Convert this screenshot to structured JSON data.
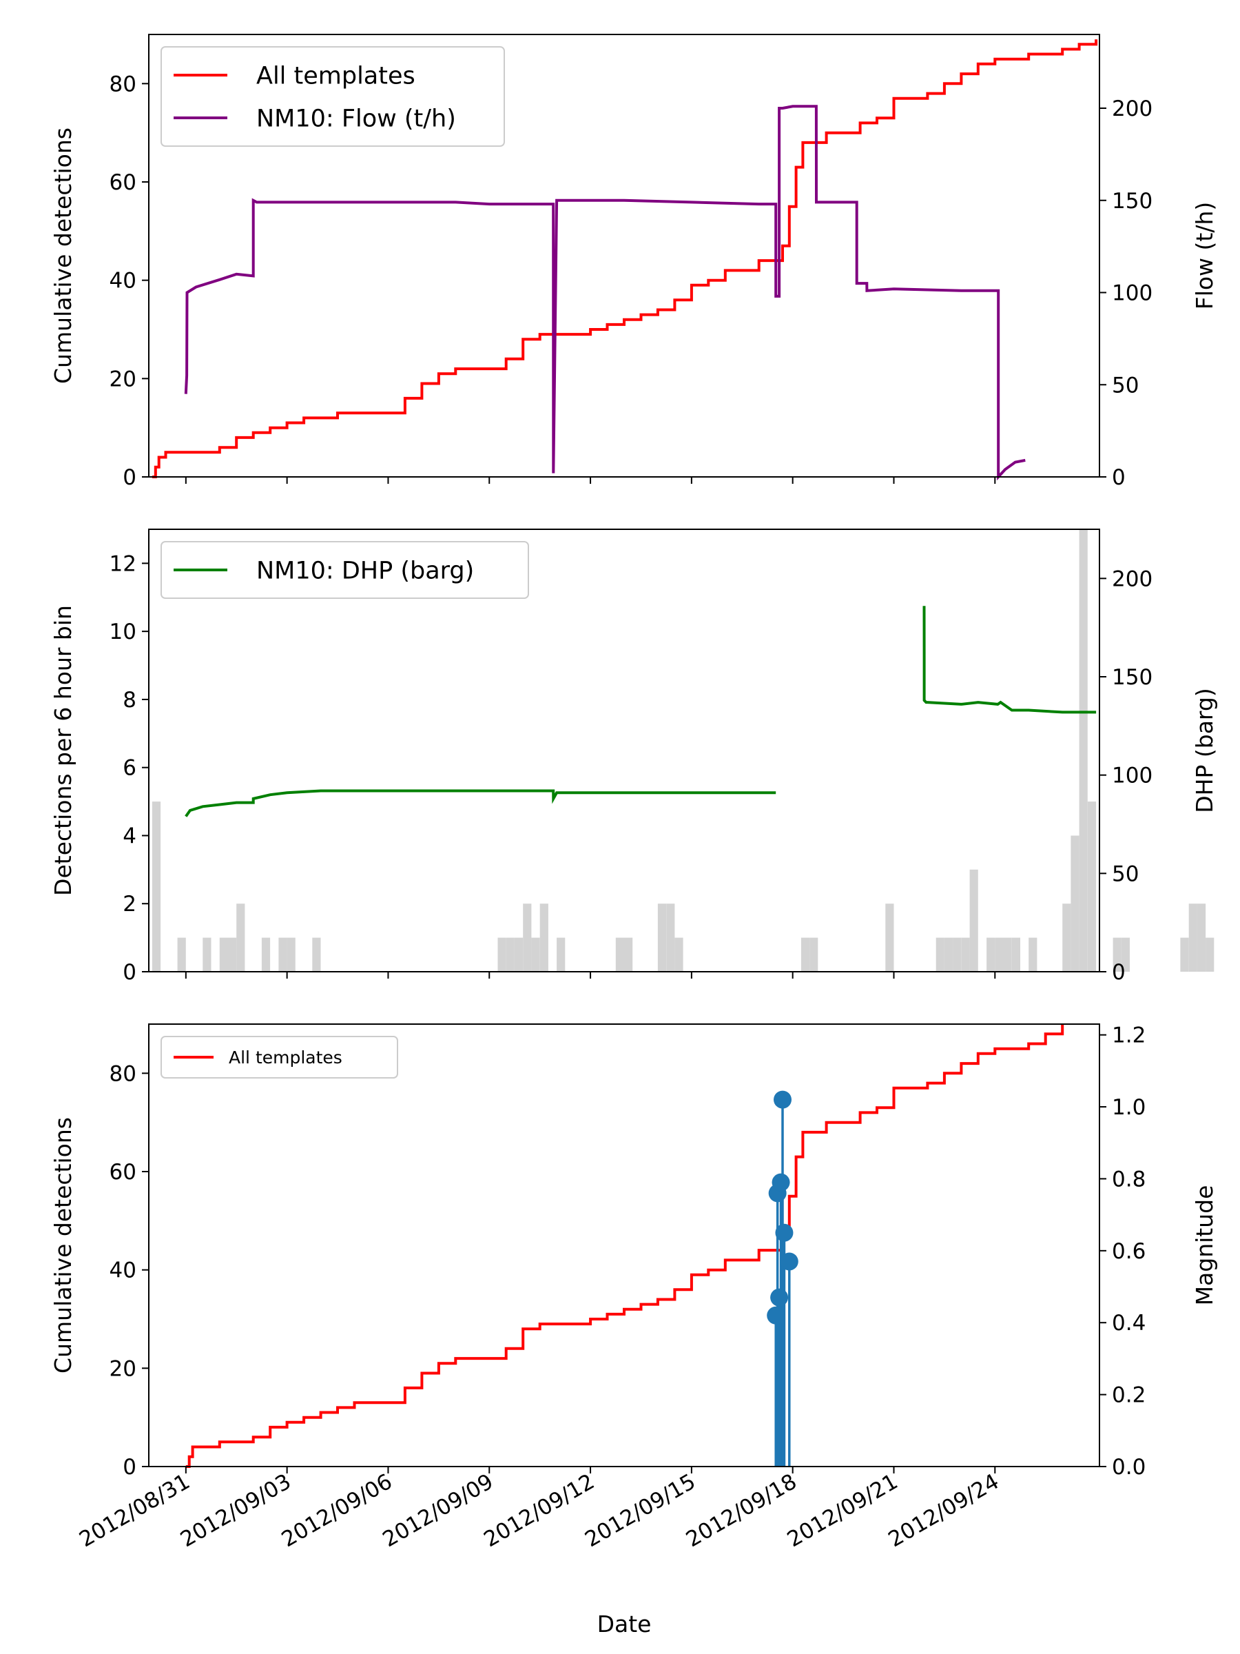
{
  "colors": {
    "cumulative": "#ff0000",
    "flow": "#800080",
    "dhp": "#008000",
    "histogram": "#d3d3d3",
    "magnitude": "#1f77b4"
  },
  "xaxis": {
    "label": "Date",
    "tick_labels": [
      "2012/08/31",
      "2012/09/03",
      "2012/09/06",
      "2012/09/09",
      "2012/09/12",
      "2012/09/15",
      "2012/09/18",
      "2012/09/21",
      "2012/09/24"
    ],
    "range_days": [
      -1.1,
      27.1
    ]
  },
  "chart_data": [
    {
      "type": "line",
      "panel": "top",
      "ylabel": "Cumulative detections",
      "ylim": [
        0,
        90
      ],
      "yticks": [
        0,
        20,
        40,
        60,
        80
      ],
      "ylabel_right": "Flow (t/h)",
      "ylim_right": [
        0,
        240
      ],
      "yticks_right": [
        0,
        50,
        100,
        150,
        200
      ],
      "legend": {
        "placement": "upper-left",
        "entries": [
          "All templates",
          "NM10: Flow (t/h)"
        ]
      },
      "series": [
        {
          "name": "All templates",
          "axis": "left",
          "step": true,
          "x": [
            "2012-08-30 00:00",
            "2012-08-30 02:24",
            "2012-08-30 04:48",
            "2012-08-30 09:36",
            "2012-08-31 00:00",
            "2012-09-01 00:00",
            "2012-09-01 12:00",
            "2012-09-02 00:00",
            "2012-09-02 12:00",
            "2012-09-03 00:00",
            "2012-09-03 12:00",
            "2012-09-04 00:00",
            "2012-09-04 12:00",
            "2012-09-05 00:00",
            "2012-09-06 00:00",
            "2012-09-06 12:00",
            "2012-09-07 00:00",
            "2012-09-07 12:00",
            "2012-09-08 00:00",
            "2012-09-09 00:00",
            "2012-09-09 12:00",
            "2012-09-10 00:00",
            "2012-09-10 12:00",
            "2012-09-11 00:00",
            "2012-09-12 00:00",
            "2012-09-12 12:00",
            "2012-09-13 00:00",
            "2012-09-13 12:00",
            "2012-09-14 00:00",
            "2012-09-14 12:00",
            "2012-09-15 00:00",
            "2012-09-15 12:00",
            "2012-09-16 00:00",
            "2012-09-16 12:00",
            "2012-09-17 00:00",
            "2012-09-17 12:00",
            "2012-09-17 16:48",
            "2012-09-17 21:36",
            "2012-09-18 02:24",
            "2012-09-18 07:12",
            "2012-09-18 12:00",
            "2012-09-19 00:00",
            "2012-09-19 12:00",
            "2012-09-20 00:00",
            "2012-09-20 12:00",
            "2012-09-21 00:00",
            "2012-09-21 12:00",
            "2012-09-22 00:00",
            "2012-09-22 12:00",
            "2012-09-23 00:00",
            "2012-09-23 12:00",
            "2012-09-24 00:00",
            "2012-09-24 12:00",
            "2012-09-25 00:00",
            "2012-09-25 12:00",
            "2012-09-26 00:00",
            "2012-09-26 12:00",
            "2012-09-27 00:00"
          ],
          "y": [
            0,
            2,
            4,
            5,
            5,
            6,
            8,
            9,
            10,
            11,
            12,
            12,
            13,
            13,
            13,
            16,
            19,
            21,
            22,
            22,
            24,
            28,
            29,
            29,
            30,
            31,
            32,
            33,
            34,
            36,
            39,
            40,
            42,
            42,
            44,
            44,
            47,
            55,
            63,
            68,
            68,
            70,
            70,
            72,
            73,
            77,
            77,
            78,
            80,
            82,
            84,
            85,
            85,
            86,
            86,
            87,
            88,
            89
          ]
        },
        {
          "name": "NM10: Flow (t/h)",
          "axis": "right",
          "x": [
            "2012-08-31 00:00",
            "2012-08-31 00:36",
            "2012-08-31 00:48",
            "2012-08-31 07:12",
            "2012-09-01 00:00",
            "2012-09-01 12:00",
            "2012-09-02 00:00",
            "2012-09-02 00:01",
            "2012-09-02 02:24",
            "2012-09-04 00:00",
            "2012-09-06 00:00",
            "2012-09-08 00:00",
            "2012-09-09 00:00",
            "2012-09-10 00:00",
            "2012-09-10 21:36",
            "2012-09-10 21:37",
            "2012-09-11 00:00",
            "2012-09-11 00:01",
            "2012-09-11 02:24",
            "2012-09-13 00:00",
            "2012-09-15 00:00",
            "2012-09-17 00:00",
            "2012-09-17 12:00",
            "2012-09-17 12:01",
            "2012-09-17 14:24",
            "2012-09-17 14:25",
            "2012-09-17 16:48",
            "2012-09-18 00:00",
            "2012-09-18 16:48",
            "2012-09-18 16:49",
            "2012-09-19 00:00",
            "2012-09-19 21:36",
            "2012-09-19 21:37",
            "2012-09-20 04:48",
            "2012-09-20 04:49",
            "2012-09-21 00:00",
            "2012-09-23 00:00",
            "2012-09-24 02:24",
            "2012-09-24 02:25",
            "2012-09-24 07:12",
            "2012-09-24 14:24",
            "2012-09-24 21:36"
          ],
          "y": [
            45,
            55,
            100,
            103,
            107,
            110,
            109,
            150,
            149,
            149,
            149,
            149,
            148,
            148,
            148,
            2,
            150,
            150,
            150,
            150,
            149,
            148,
            148,
            98,
            98,
            200,
            200,
            201,
            201,
            149,
            149,
            149,
            105,
            105,
            101,
            102,
            101,
            101,
            0,
            4,
            8,
            9
          ]
        }
      ]
    },
    {
      "type": "bar",
      "panel": "middle",
      "ylabel": "Detections per 6 hour bin",
      "ylim": [
        0,
        13
      ],
      "yticks": [
        0,
        2,
        4,
        6,
        8,
        10,
        12
      ],
      "ylabel_right": "DHP (barg)",
      "ylim_right": [
        0,
        225
      ],
      "yticks_right": [
        0,
        50,
        100,
        150,
        200
      ],
      "legend": {
        "placement": "upper-left",
        "entries": [
          "NM10: DHP (barg)"
        ]
      },
      "bin_hours": 6,
      "bins_start": "2012-08-30 00:00",
      "values": [
        5,
        0,
        0,
        1,
        0,
        0,
        1,
        0,
        1,
        1,
        2,
        0,
        0,
        1,
        0,
        1,
        1,
        0,
        0,
        1,
        0,
        0,
        0,
        0,
        0,
        0,
        0,
        0,
        0,
        0,
        0,
        0,
        0,
        0,
        0,
        0,
        0,
        0,
        0,
        0,
        0,
        1,
        1,
        1,
        2,
        1,
        2,
        0,
        1,
        0,
        0,
        0,
        0,
        0,
        0,
        1,
        1,
        0,
        0,
        0,
        2,
        2,
        1,
        0,
        0,
        0,
        0,
        0,
        0,
        0,
        0,
        0,
        0,
        0,
        0,
        0,
        0,
        1,
        1,
        0,
        0,
        0,
        0,
        0,
        0,
        0,
        0,
        2,
        0,
        0,
        0,
        0,
        0,
        1,
        1,
        1,
        1,
        3,
        0,
        1,
        1,
        1,
        1,
        0,
        1,
        0,
        0,
        0,
        2,
        4,
        13,
        5,
        0,
        0,
        1,
        1,
        0,
        0,
        0,
        0,
        0,
        0,
        1,
        2,
        2,
        1,
        0,
        0,
        0,
        0,
        0,
        0,
        1,
        1,
        1,
        2,
        1,
        0,
        1,
        0,
        0,
        0,
        0,
        0,
        1,
        1,
        1,
        2
      ],
      "series": [
        {
          "name": "NM10: DHP (barg)",
          "axis": "right",
          "x": [
            "2012-08-31 00:00",
            "2012-08-31 03:00",
            "2012-08-31 12:00",
            "2012-09-01 00:00",
            "2012-09-01 12:00",
            "2012-09-02 00:00",
            "2012-09-02 00:01",
            "2012-09-02 12:00",
            "2012-09-03 00:00",
            "2012-09-04 00:00",
            "2012-09-06 00:00",
            "2012-09-08 00:00",
            "2012-09-09 00:00",
            "2012-09-10 00:00",
            "2012-09-10 21:36",
            "2012-09-10 21:37",
            "2012-09-11 00:00",
            "2012-09-11 00:01",
            "2012-09-11 02:24",
            "2012-09-12 00:00",
            "2012-09-14 00:00",
            "2012-09-16 00:00",
            "2012-09-17 00:00",
            "2012-09-17 12:00",
            "2012-09-18 03:36",
            "2012-09-18 03:37",
            "2012-09-19 00:00",
            "2012-09-20 00:00",
            "2012-09-21 00:00",
            "2012-09-21 21:36",
            "2012-09-21 21:37",
            "2012-09-21 21:38",
            "2012-09-21 23:00",
            "2012-09-22 00:00",
            "2012-09-23 00:00",
            "2012-09-23 12:00",
            "2012-09-24 02:00",
            "2012-09-24 04:00",
            "2012-09-24 12:00",
            "2012-09-25 00:00",
            "2012-09-26 00:00",
            "2012-09-27 00:00"
          ],
          "y": [
            79,
            82,
            84,
            85,
            86,
            86,
            88,
            90,
            91,
            92,
            92,
            92,
            92,
            92,
            92,
            88,
            91,
            91,
            91,
            91,
            91,
            91,
            91,
            91,
            null,
            null,
            null,
            null,
            null,
            186,
            160,
            138,
            137,
            137,
            136,
            137,
            136,
            137,
            133,
            133,
            132,
            132
          ]
        }
      ]
    },
    {
      "type": "line",
      "panel": "bottom",
      "xlabel": "Date",
      "ylabel": "Cumulative detections",
      "ylim": [
        0,
        90
      ],
      "yticks": [
        0,
        20,
        40,
        60,
        80
      ],
      "ylabel_right": "Magnitude",
      "ylim_right": [
        0,
        1.23
      ],
      "yticks_right": [
        0.0,
        0.2,
        0.4,
        0.6,
        0.8,
        1.0,
        1.2
      ],
      "legend": {
        "placement": "upper-left",
        "entries": [
          "All templates"
        ]
      },
      "series": [
        {
          "name": "All templates",
          "axis": "left",
          "step": true,
          "x": [
            "2012-08-31 00:00",
            "2012-08-31 02:24",
            "2012-08-31 04:48",
            "2012-09-01 00:00",
            "2012-09-02 00:00",
            "2012-09-02 12:00",
            "2012-09-03 00:00",
            "2012-09-03 12:00",
            "2012-09-04 00:00",
            "2012-09-04 12:00",
            "2012-09-05 00:00",
            "2012-09-06 00:00",
            "2012-09-06 12:00",
            "2012-09-07 00:00",
            "2012-09-07 12:00",
            "2012-09-08 00:00",
            "2012-09-09 00:00",
            "2012-09-09 12:00",
            "2012-09-10 00:00",
            "2012-09-10 12:00",
            "2012-09-11 00:00",
            "2012-09-12 00:00",
            "2012-09-12 12:00",
            "2012-09-13 00:00",
            "2012-09-13 12:00",
            "2012-09-14 00:00",
            "2012-09-14 12:00",
            "2012-09-15 00:00",
            "2012-09-15 12:00",
            "2012-09-16 00:00",
            "2012-09-16 12:00",
            "2012-09-17 00:00",
            "2012-09-17 12:00",
            "2012-09-17 16:48",
            "2012-09-17 21:36",
            "2012-09-18 02:24",
            "2012-09-18 07:12",
            "2012-09-18 12:00",
            "2012-09-19 00:00",
            "2012-09-19 12:00",
            "2012-09-20 00:00",
            "2012-09-20 12:00",
            "2012-09-21 00:00",
            "2012-09-21 12:00",
            "2012-09-22 00:00",
            "2012-09-22 12:00",
            "2012-09-23 00:00",
            "2012-09-23 12:00",
            "2012-09-24 00:00",
            "2012-09-24 12:00",
            "2012-09-25 00:00",
            "2012-09-25 12:00",
            "2012-09-26 00:00"
          ],
          "y": [
            0,
            2,
            4,
            5,
            6,
            8,
            9,
            10,
            11,
            12,
            13,
            13,
            16,
            19,
            21,
            22,
            22,
            24,
            28,
            29,
            29,
            30,
            31,
            32,
            33,
            34,
            36,
            39,
            40,
            42,
            42,
            44,
            44,
            47,
            55,
            63,
            68,
            68,
            70,
            70,
            72,
            73,
            77,
            77,
            78,
            80,
            82,
            84,
            85,
            85,
            86,
            88,
            90
          ]
        },
        {
          "name": "",
          "type": "stem",
          "axis": "right",
          "x": [
            "2012-09-17 12:00",
            "2012-09-17 13:12",
            "2012-09-17 14:24",
            "2012-09-17 15:36",
            "2012-09-17 16:48",
            "2012-09-17 18:00",
            "2012-09-17 21:36"
          ],
          "y": [
            0.42,
            0.76,
            0.47,
            0.79,
            1.02,
            0.65,
            0.57
          ]
        }
      ]
    }
  ]
}
